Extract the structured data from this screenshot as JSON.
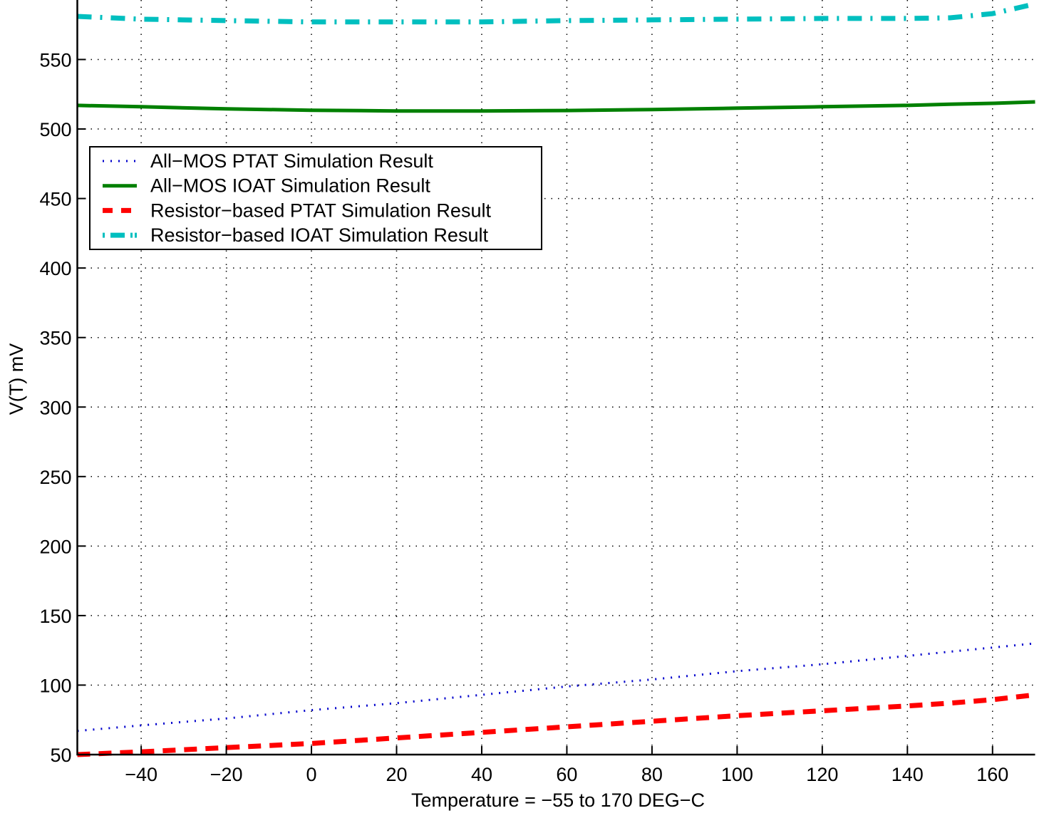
{
  "chart_data": {
    "type": "line",
    "title": "",
    "xlabel": "Temperature = −55 to 170 DEG−C",
    "ylabel": "V(T) mV",
    "xlim": [
      -55,
      170
    ],
    "ylim": [
      50,
      593
    ],
    "grid": true,
    "legend_position": "upper-left (inside axes)",
    "x_ticks": [
      -40,
      -20,
      0,
      20,
      40,
      60,
      80,
      100,
      120,
      140,
      160
    ],
    "x_tick_labels": [
      "−40",
      "−20",
      "0",
      "20",
      "40",
      "60",
      "80",
      "100",
      "120",
      "140",
      "160"
    ],
    "y_ticks": [
      50,
      100,
      150,
      200,
      250,
      300,
      350,
      400,
      450,
      500,
      550
    ],
    "y_tick_labels": [
      "50",
      "100",
      "150",
      "200",
      "250",
      "300",
      "350",
      "400",
      "450",
      "500",
      "550"
    ],
    "x": [
      -55,
      -40,
      -20,
      0,
      20,
      40,
      60,
      80,
      100,
      120,
      140,
      150,
      160,
      170
    ],
    "series": [
      {
        "name": "All−MOS PTAT Simulation Result",
        "color": "#0000cc",
        "style": "dotted",
        "values": [
          67,
          71,
          76,
          82,
          87,
          93,
          99,
          104,
          110,
          115,
          121,
          124,
          127,
          130
        ]
      },
      {
        "name": "All−MOS IOAT Simulation Result",
        "color": "#008000",
        "style": "solid",
        "values": [
          517,
          516,
          514.5,
          513.5,
          513,
          513,
          513.3,
          514,
          515,
          516,
          517,
          517.8,
          518.5,
          519.5
        ]
      },
      {
        "name": "Resistor−based PTAT Simulation Result",
        "color": "#ff0000",
        "style": "dashed",
        "values": [
          50,
          52,
          55,
          58,
          62,
          66,
          70,
          74,
          78,
          81.5,
          85,
          87,
          89.5,
          93
        ]
      },
      {
        "name": "Resistor−based IOAT Simulation Result",
        "color": "#00bfbf",
        "style": "dashdot",
        "values": [
          581,
          579,
          578,
          577,
          577,
          577,
          578,
          578.5,
          579,
          579.5,
          579.5,
          580,
          583,
          590
        ]
      }
    ]
  }
}
